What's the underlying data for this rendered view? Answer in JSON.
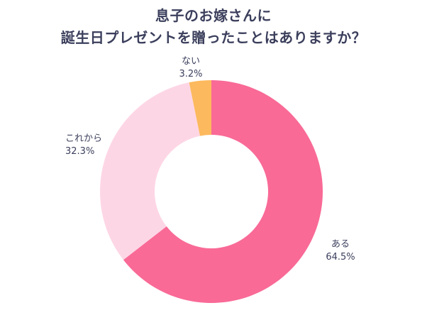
{
  "title": {
    "line1": "息子のお嫁さんに",
    "line2": "誕生日プレゼントを贈ったことはありますか？"
  },
  "chart_data": {
    "type": "pie",
    "variant": "donut",
    "title": "息子のお嫁さんに 誕生日プレゼントを贈ったことはありますか？",
    "slices": [
      {
        "label": "ある",
        "value": 64.5,
        "display": "64.5%",
        "color": "#f96a97"
      },
      {
        "label": "これから",
        "value": 32.3,
        "display": "32.3%",
        "color": "#fdd6e5"
      },
      {
        "label": "ない",
        "value": 3.2,
        "display": "3.2%",
        "color": "#fcb95d"
      }
    ],
    "start_angle": "12 o'clock",
    "direction": "clockwise",
    "legend": "none",
    "labels": "outside"
  }
}
